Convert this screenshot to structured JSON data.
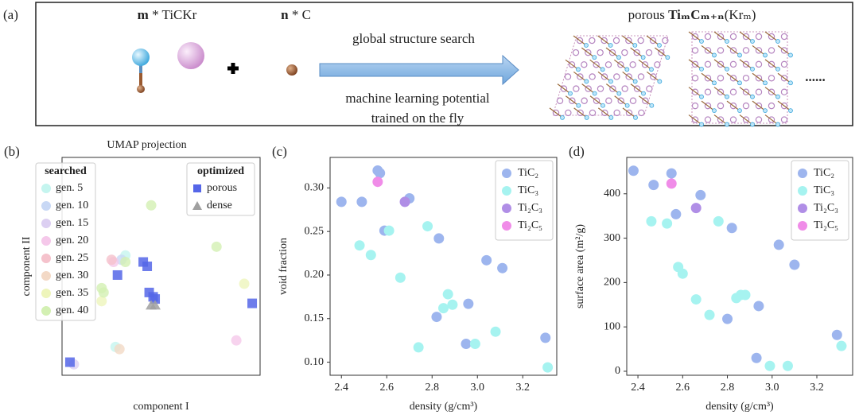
{
  "panel_a": {
    "label": "(a)",
    "reactant_1_count": "m",
    "reactant_1": "* TiCKr",
    "reactant_2_count": "n",
    "reactant_2": "* C",
    "arrow_top": "global structure search",
    "arrow_bottom_1": "machine learning potential",
    "arrow_bottom_2": "trained on the fly",
    "product_prefix": "porous",
    "product_formula": "TiₘCₘ₊ₙ",
    "product_suffix": "(Krₘ)",
    "ellipsis": "......"
  },
  "chart_data": [
    {
      "type": "scatter",
      "panel": "(b)",
      "title": "UMAP projection",
      "x_label": "component I",
      "y_label": "component II",
      "xlim": [
        0,
        100
      ],
      "ylim": [
        0,
        100
      ],
      "series_groups": [
        {
          "title": "searched",
          "series": [
            {
              "name": "gen. 5",
              "color": "#c5f5ef",
              "marker": "circle",
              "x": [
                27,
                32
              ],
              "values": [
                13,
                55
              ]
            },
            {
              "name": "gen. 10",
              "color": "#c8d8f5",
              "marker": "circle",
              "x": [
                30
              ],
              "values": [
                53
              ]
            },
            {
              "name": "gen. 15",
              "color": "#dccff2",
              "marker": "circle",
              "x": [
                6
              ],
              "values": [
                5
              ]
            },
            {
              "name": "gen. 20",
              "color": "#f5c8ea",
              "marker": "circle",
              "x": [
                26,
                88
              ],
              "values": [
                52,
                16
              ]
            },
            {
              "name": "gen. 25",
              "color": "#f5c2cc",
              "marker": "circle",
              "x": [
                25
              ],
              "values": [
                53
              ]
            },
            {
              "name": "gen. 30",
              "color": "#f3d9c6",
              "marker": "circle",
              "x": [
                29
              ],
              "values": [
                12
              ]
            },
            {
              "name": "gen. 35",
              "color": "#eef5bb",
              "marker": "circle",
              "x": [
                20,
                92
              ],
              "values": [
                34,
                42
              ]
            },
            {
              "name": "gen. 40",
              "color": "#d3f0b3",
              "marker": "circle",
              "x": [
                45,
                78,
                20,
                21,
                32
              ],
              "values": [
                78,
                59,
                40,
                38,
                52
              ]
            }
          ]
        },
        {
          "title": "optimized",
          "series": [
            {
              "name": "porous",
              "color": "#5566e8",
              "marker": "square",
              "x": [
                28,
                41,
                43,
                44,
                46,
                47,
                96,
                4
              ],
              "values": [
                46,
                52,
                50,
                38,
                36,
                35,
                33,
                6
              ]
            },
            {
              "name": "dense",
              "color": "#a0a0a0",
              "marker": "triangle",
              "x": [
                45,
                47
              ],
              "values": [
                32,
                32
              ]
            }
          ]
        }
      ]
    },
    {
      "type": "scatter",
      "panel": "(c)",
      "x_label": "density (g/cm³)",
      "y_label": "void fraction",
      "xlim": [
        2.35,
        3.35
      ],
      "ylim": [
        0.085,
        0.335
      ],
      "xticks": [
        2.4,
        2.6,
        2.8,
        {
          "value": 3.0,
          "label": "3.0"
        },
        3.2
      ],
      "yticks": [
        {
          "value": 0.1,
          "label": "0.10"
        },
        0.15,
        {
          "value": 0.2,
          "label": "0.20"
        },
        0.25,
        {
          "value": 0.3,
          "label": "0.30"
        }
      ],
      "legend": "upper right",
      "series": [
        {
          "name": "TiC₂",
          "color": "#9db5ee",
          "x": [
            2.4,
            2.49,
            2.56,
            2.57,
            2.7,
            2.59,
            2.83,
            3.04,
            3.11,
            2.96,
            2.82,
            2.95,
            3.3
          ],
          "values": [
            0.284,
            0.284,
            0.32,
            0.317,
            0.288,
            0.251,
            0.242,
            0.217,
            0.208,
            0.167,
            0.152,
            0.121,
            0.128
          ]
        },
        {
          "name": "TiC₃",
          "color": "#a6f3f0",
          "x": [
            2.61,
            2.48,
            2.53,
            2.66,
            2.78,
            2.87,
            2.85,
            2.89,
            3.08,
            2.99,
            2.74,
            3.31
          ],
          "values": [
            0.251,
            0.234,
            0.223,
            0.197,
            0.256,
            0.178,
            0.162,
            0.166,
            0.135,
            0.121,
            0.117,
            0.094
          ]
        },
        {
          "name": "Ti₂C₃",
          "color": "#b08ee6",
          "x": [
            2.68
          ],
          "values": [
            0.284
          ]
        },
        {
          "name": "Ti₂C₅",
          "color": "#f08ce8",
          "x": [
            2.56
          ],
          "values": [
            0.307
          ]
        }
      ]
    },
    {
      "type": "scatter",
      "panel": "(d)",
      "x_label": "density (g/cm³)",
      "y_label": "surface area (m²/g)",
      "xlim": [
        2.35,
        3.36
      ],
      "ylim": [
        -9,
        482
      ],
      "xticks": [
        2.4,
        2.6,
        2.8,
        {
          "value": 3.0,
          "label": "3.0"
        },
        3.2
      ],
      "yticks": [
        0,
        100,
        200,
        300,
        400
      ],
      "legend": "upper right",
      "series": [
        {
          "name": "TiC₂",
          "color": "#9db5ee",
          "x": [
            2.38,
            2.47,
            2.55,
            2.57,
            2.68,
            2.82,
            3.03,
            3.1,
            2.94,
            2.8,
            2.93,
            3.29
          ],
          "values": [
            452,
            420,
            446,
            354,
            397,
            323,
            285,
            240,
            147,
            118,
            30,
            82
          ]
        },
        {
          "name": "TiC₃",
          "color": "#a6f3f0",
          "x": [
            2.46,
            2.53,
            2.58,
            2.6,
            2.76,
            2.86,
            2.84,
            2.88,
            2.72,
            2.66,
            3.07,
            2.99,
            3.31
          ],
          "values": [
            338,
            333,
            235,
            220,
            338,
            172,
            165,
            172,
            127,
            162,
            12,
            12,
            57
          ]
        },
        {
          "name": "Ti₂C₃",
          "color": "#b08ee6",
          "x": [
            2.66
          ],
          "values": [
            368
          ]
        },
        {
          "name": "Ti₂C₅",
          "color": "#f08ce8",
          "x": [
            2.55
          ],
          "values": [
            423
          ]
        }
      ]
    }
  ]
}
